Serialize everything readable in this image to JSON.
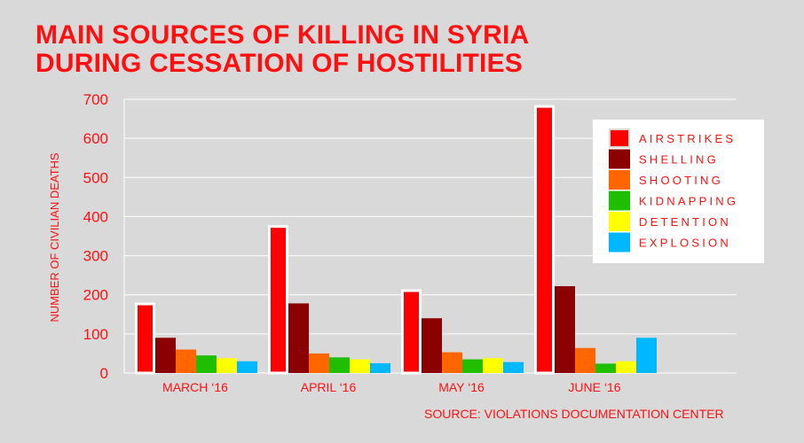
{
  "title_line1": "MAIN SOURCES OF KILLING IN SYRIA",
  "title_line2": "DURING CESSATION OF HOSTILITIES",
  "source": "SOURCE: VIOLATIONS DOCUMENTATION CENTER",
  "colors": {
    "airstrikes": "#ff0000",
    "shelling": "#8b0000",
    "shooting": "#ff6600",
    "kidnapping": "#1fbf00",
    "detention": "#ffff00",
    "explosion": "#00b8ff",
    "text": "#ff1010"
  },
  "chart_data": {
    "type": "bar",
    "title": "MAIN SOURCES OF KILLING IN SYRIA DURING CESSATION OF HOSTILITIES",
    "xlabel": "",
    "ylabel": "NUMBER OF CIVILIAN DEATHS",
    "ylim": [
      0,
      700
    ],
    "yticks": [
      0,
      100,
      200,
      300,
      400,
      500,
      600,
      700
    ],
    "grid": true,
    "legend_position": "top-right",
    "categories": [
      "MARCH ‘16",
      "APRIL ‘16",
      "MAY ‘16",
      "JUNE ‘16"
    ],
    "series": [
      {
        "name": "AIRSTRIKES",
        "color": "#ff0000",
        "values": [
          180,
          378,
          214,
          685
        ]
      },
      {
        "name": "SHELLING",
        "color": "#8b0000",
        "values": [
          90,
          178,
          140,
          222
        ]
      },
      {
        "name": "SHOOTING",
        "color": "#ff6600",
        "values": [
          60,
          50,
          53,
          64
        ]
      },
      {
        "name": "KIDNAPPING",
        "color": "#1fbf00",
        "values": [
          45,
          40,
          35,
          24
        ]
      },
      {
        "name": "DETENTION",
        "color": "#ffff00",
        "values": [
          38,
          35,
          38,
          30
        ]
      },
      {
        "name": "EXPLOSION",
        "color": "#00b8ff",
        "values": [
          30,
          25,
          28,
          90
        ]
      }
    ]
  }
}
